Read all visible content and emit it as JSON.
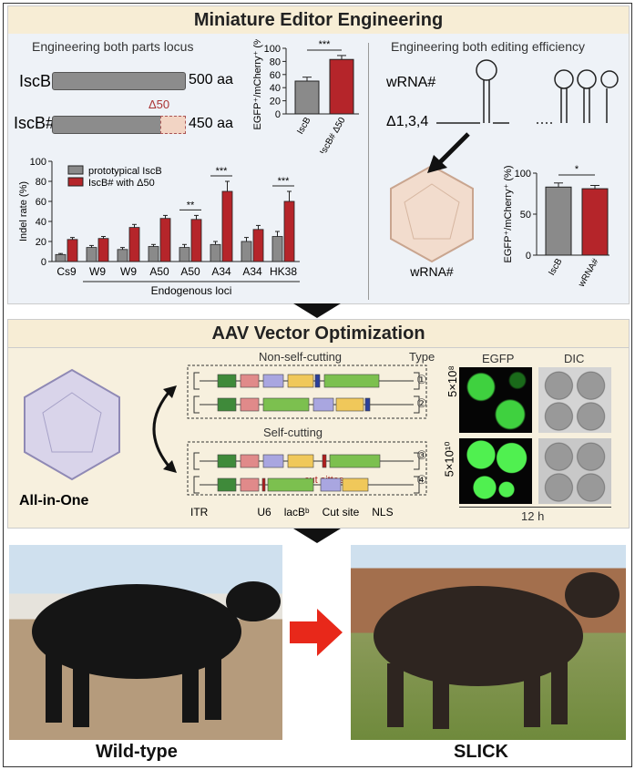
{
  "panel1": {
    "title": "Miniature Editor Engineering",
    "left_subtitle": "Engineering both parts locus",
    "right_subtitle": "Engineering both editing efficiency",
    "iscb_label": "IscB",
    "iscb_len": "500 aa",
    "iscb_sharp_label": "IscB#",
    "iscb_sharp_len": "450 aa",
    "delta": "Δ50",
    "wrna_label": "wRNA#",
    "delta134": "Δ1,3,4",
    "virus_label": "wRNA#"
  },
  "panel2": {
    "title": "AAV Vector Optimization",
    "all_in_one": "All-in-One",
    "non_self": "Non-self-cutting",
    "self": "Self-cutting",
    "type": "Type",
    "types": [
      "①",
      "②",
      "③",
      "④"
    ],
    "cut_sites": "cut sittes",
    "egfp": "EGFP",
    "dic": "DIC",
    "dose1": "5×10⁸",
    "dose2": "5×10¹⁰",
    "time": "12 h",
    "legend": [
      "ITR",
      "U6",
      "lacBᵇ",
      "Cut site",
      "NLS"
    ],
    "colors": {
      "green": "#3f8a3a",
      "lightgreen": "#7cc04f",
      "u6": "#e08a8a",
      "arrow": "#a9a6e0",
      "lacb": "#f0c85a",
      "cut": "#b01c1c",
      "nls": "#999",
      "nlsblue": "#2a3f9a"
    }
  },
  "photos": {
    "left_label": "Wild-type",
    "right_label": "SLICK"
  },
  "chart_data": [
    {
      "type": "bar",
      "ylabel": "Indel rate (%)",
      "xlabel": "Endogenous loci",
      "ylim": [
        0,
        100
      ],
      "yticks": [
        0,
        20,
        40,
        60,
        80,
        100
      ],
      "categories": [
        "Cs9",
        "W9",
        "W9",
        "A50",
        "A50",
        "A34",
        "A34",
        "HK38"
      ],
      "series": [
        {
          "name": "prototypical IscB",
          "color": "#8a8a8a",
          "values": [
            7,
            14,
            12,
            15,
            14,
            17,
            20,
            25
          ],
          "err": [
            1,
            2,
            2,
            2,
            3,
            3,
            4,
            5
          ]
        },
        {
          "name": "IscB# with Δ50",
          "color": "#b5252a",
          "values": [
            22,
            23,
            34,
            43,
            42,
            70,
            32,
            60
          ],
          "err": [
            2,
            2,
            3,
            3,
            4,
            10,
            4,
            10
          ]
        }
      ],
      "significance": [
        {
          "index": 4,
          "label": "**"
        },
        {
          "index": 5,
          "label": "***"
        },
        {
          "index": 7,
          "label": "***"
        }
      ]
    },
    {
      "type": "bar",
      "ylabel": "EGFP⁺/mCherry⁺ (%)",
      "ylim": [
        0,
        100
      ],
      "yticks": [
        0,
        20,
        40,
        60,
        80,
        100
      ],
      "categories": [
        "IscB",
        "IscB# Δ50"
      ],
      "values": [
        50,
        83
      ],
      "err": [
        6,
        6
      ],
      "colors": [
        "#8a8a8a",
        "#b5252a"
      ],
      "significance": "***"
    },
    {
      "type": "bar",
      "ylabel": "EGFP⁺/mCherry⁺ (%)",
      "ylim": [
        0,
        100
      ],
      "yticks": [
        0,
        50,
        100
      ],
      "categories": [
        "IscB",
        "wRNA#"
      ],
      "values": [
        83,
        81
      ],
      "err": [
        5,
        4
      ],
      "colors": [
        "#8a8a8a",
        "#b5252a"
      ],
      "significance": "*"
    }
  ]
}
